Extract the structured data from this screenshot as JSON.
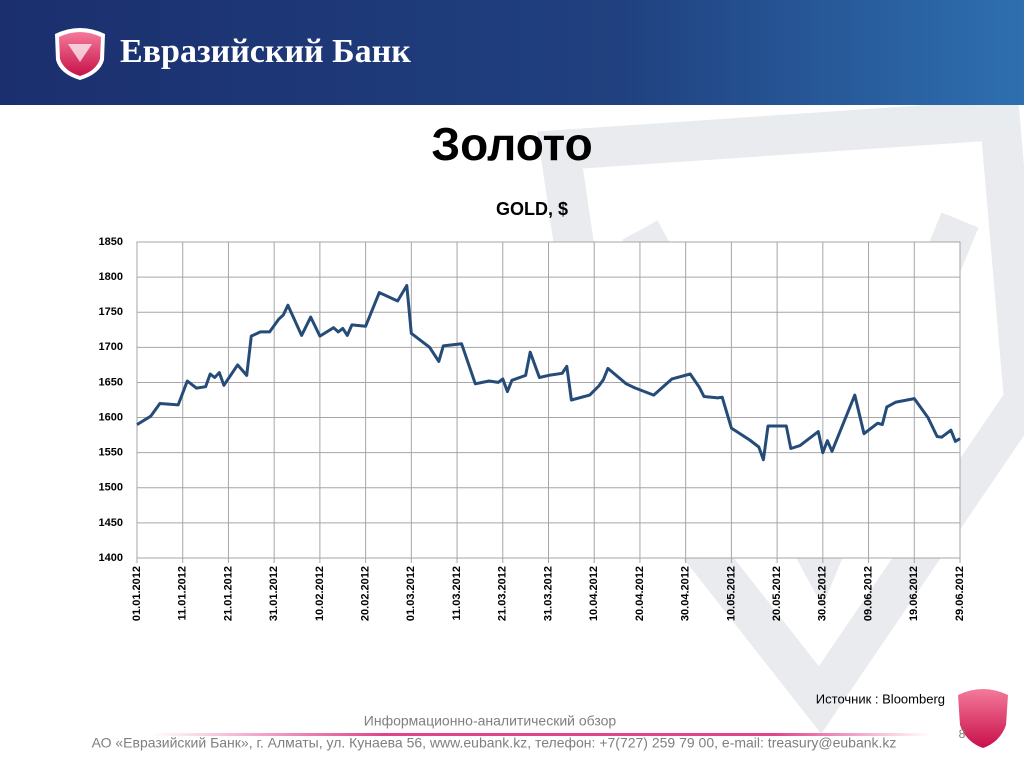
{
  "header": {
    "brand": "Евразийский Банк"
  },
  "slide_title": "Золото",
  "chart_data": {
    "type": "line",
    "title": "GOLD, $",
    "x": [
      "01.01.2012",
      "04.01.2012",
      "06.01.2012",
      "10.01.2012",
      "12.01.2012",
      "14.01.2012",
      "16.01.2012",
      "17.01.2012",
      "18.01.2012",
      "19.01.2012",
      "20.01.2012",
      "23.01.2012",
      "25.01.2012",
      "26.01.2012",
      "28.01.2012",
      "30.01.2012",
      "01.02.2012",
      "02.02.2012",
      "03.02.2012",
      "06.02.2012",
      "08.02.2012",
      "10.02.2012",
      "13.02.2012",
      "14.02.2012",
      "15.02.2012",
      "16.02.2012",
      "17.02.2012",
      "20.02.2012",
      "23.02.2012",
      "27.02.2012",
      "29.02.2012",
      "01.03.2012",
      "05.03.2012",
      "07.03.2012",
      "08.03.2012",
      "12.03.2012",
      "15.03.2012",
      "18.03.2012",
      "20.03.2012",
      "21.03.2012",
      "22.03.2012",
      "23.03.2012",
      "26.03.2012",
      "27.03.2012",
      "29.03.2012",
      "31.03.2012",
      "03.04.2012",
      "04.04.2012",
      "05.04.2012",
      "09.04.2012",
      "11.04.2012",
      "12.04.2012",
      "13.04.2012",
      "17.04.2012",
      "19.04.2012",
      "23.04.2012",
      "27.04.2012",
      "01.05.2012",
      "03.05.2012",
      "04.05.2012",
      "07.05.2012",
      "08.05.2012",
      "10.05.2012",
      "14.05.2012",
      "16.05.2012",
      "17.05.2012",
      "18.05.2012",
      "22.05.2012",
      "23.05.2012",
      "25.05.2012",
      "29.05.2012",
      "30.05.2012",
      "31.05.2012",
      "01.06.2012",
      "06.06.2012",
      "08.06.2012",
      "11.06.2012",
      "12.06.2012",
      "13.06.2012",
      "15.06.2012",
      "19.06.2012",
      "22.06.2012",
      "24.06.2012",
      "25.06.2012",
      "27.06.2012",
      "28.06.2012",
      "29.06.2012"
    ],
    "series": [
      {
        "name": "GOLD",
        "color": "#254b78",
        "values": [
          1590,
          1602,
          1620,
          1618,
          1652,
          1642,
          1644,
          1662,
          1657,
          1664,
          1646,
          1675,
          1660,
          1716,
          1722,
          1722,
          1740,
          1746,
          1760,
          1717,
          1743,
          1716,
          1728,
          1722,
          1727,
          1717,
          1732,
          1730,
          1778,
          1766,
          1788,
          1720,
          1700,
          1680,
          1702,
          1705,
          1648,
          1652,
          1650,
          1655,
          1637,
          1653,
          1660,
          1693,
          1657,
          1660,
          1663,
          1673,
          1625,
          1632,
          1645,
          1654,
          1670,
          1648,
          1642,
          1632,
          1655,
          1662,
          1643,
          1630,
          1628,
          1629,
          1585,
          1568,
          1558,
          1540,
          1588,
          1588,
          1556,
          1560,
          1580,
          1550,
          1567,
          1552,
          1632,
          1577,
          1592,
          1590,
          1615,
          1622,
          1627,
          1600,
          1573,
          1572,
          1582,
          1566,
          1570
        ]
      }
    ],
    "xlim": [
      "01.01.2012",
      "29.06.2012"
    ],
    "xticks": [
      "01.01.2012",
      "11.01.2012",
      "21.01.2012",
      "31.01.2012",
      "10.02.2012",
      "20.02.2012",
      "01.03.2012",
      "11.03.2012",
      "21.03.2012",
      "31.03.2012",
      "10.04.2012",
      "20.04.2012",
      "30.04.2012",
      "10.05.2012",
      "20.05.2012",
      "30.05.2012",
      "09.06.2012",
      "19.06.2012",
      "29.06.2012"
    ],
    "ylim": [
      1400,
      1850
    ],
    "yticks": [
      1400,
      1450,
      1500,
      1550,
      1600,
      1650,
      1700,
      1750,
      1800,
      1850
    ],
    "grid": true,
    "source": "Источник : Bloomberg"
  },
  "footer": {
    "subtitle": "Информационно-аналитический обзор",
    "address": "АО «Евразийский Банк», г. Алматы, ул. Кунаева 56, www.eubank.kz, телефон: +7(727) 259 79 00, e-mail: treasury@eubank.kz",
    "page": 8
  }
}
